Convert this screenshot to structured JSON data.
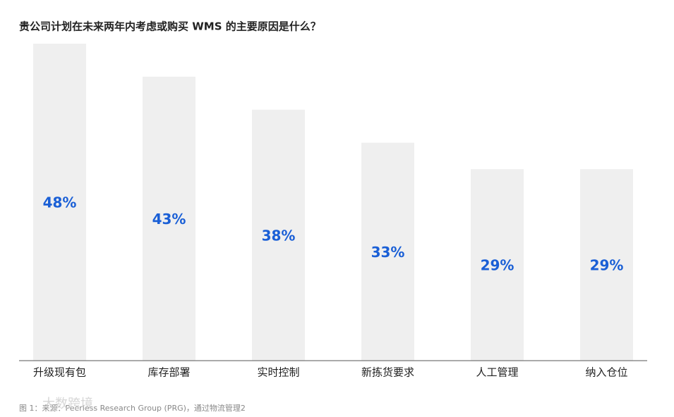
{
  "chart_data": {
    "type": "bar",
    "title": "贵公司计划在未来两年内考虑或购买 WMS 的主要原因是什么？",
    "categories": [
      "升级现有包",
      "库存部署",
      "实时控制",
      "新拣货要求",
      "人工管理",
      "纳入仓位"
    ],
    "values": [
      48,
      43,
      38,
      33,
      29,
      29
    ],
    "value_labels": [
      "48%",
      "43%",
      "38%",
      "33%",
      "29%",
      "29%"
    ],
    "color": "#efefef",
    "label_color": "#1a5fd6",
    "ylim": [
      0,
      48
    ],
    "footnote": "图 1：来源：Peerless Research Group (PRG)，通过物流管理2",
    "watermark": "大数跨境"
  }
}
